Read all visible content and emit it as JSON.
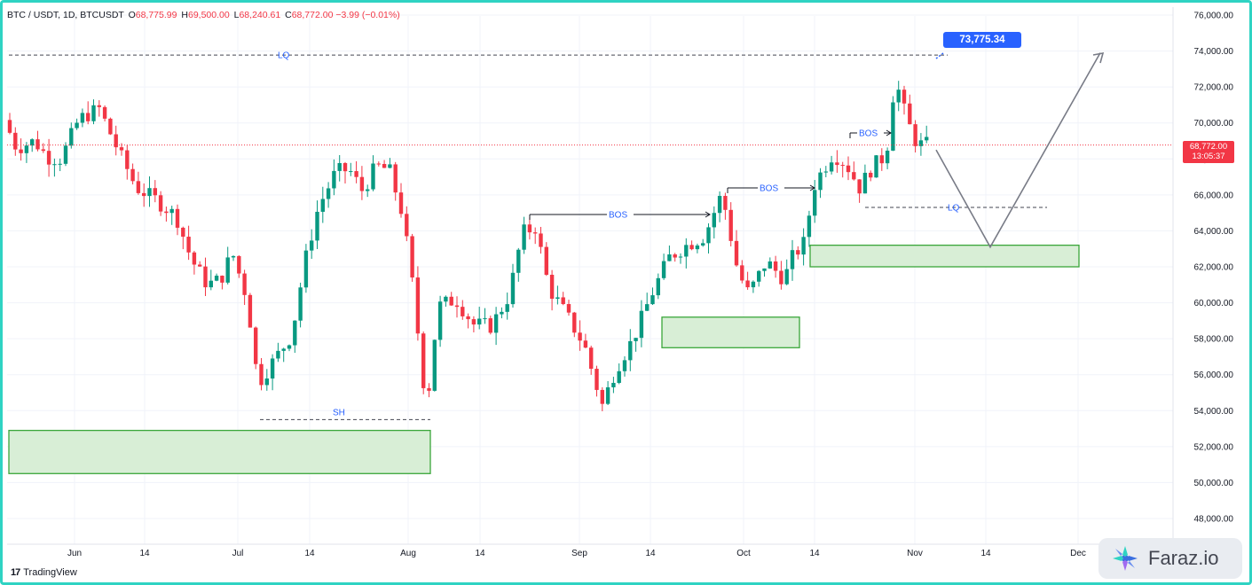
{
  "header": {
    "symbol": "BTC / USDT, 1D, BTCUSDT",
    "open_label": "O",
    "open": "68,775.99",
    "high_label": "H",
    "high": "69,500.00",
    "low_label": "L",
    "low": "68,240.61",
    "close_label": "C",
    "close": "68,772.00",
    "change": "−3.99 (−0.01%)"
  },
  "current_price": {
    "value": "68,772.00",
    "countdown": "13:05:37"
  },
  "callout": "73,775.34",
  "branding": {
    "tradingview": "TradingView",
    "faraz": "Faraz.io"
  },
  "colors": {
    "up": "#089981",
    "down": "#f23645",
    "annotation": "#2962ff",
    "zone_fill": "#d8eed6",
    "zone_border": "#3aa63a"
  },
  "chart_data": {
    "type": "candlestick",
    "y_axis": {
      "min": 48000,
      "max": 76000,
      "ticks": [
        "76,000.00",
        "74,000.00",
        "72,000.00",
        "70,000.00",
        "68,000.00",
        "66,000.00",
        "64,000.00",
        "62,000.00",
        "60,000.00",
        "58,000.00",
        "56,000.00",
        "54,000.00",
        "52,000.00",
        "50,000.00",
        "48,000.00"
      ]
    },
    "x_axis": {
      "ticks": [
        "Jun",
        "14",
        "Jul",
        "14",
        "Aug",
        "14",
        "Sep",
        "14",
        "Oct",
        "14",
        "Nov",
        "14",
        "Dec"
      ]
    },
    "annotations": {
      "lq_top": {
        "label": "LQ",
        "price": 73775
      },
      "lq_mid": {
        "label": "LQ",
        "price": 65300
      },
      "sh": {
        "label": "SH",
        "price": 53500
      },
      "bos": [
        "BOS",
        "BOS",
        "BOS"
      ]
    },
    "zones": [
      {
        "top": 52900,
        "bottom": 50500
      },
      {
        "top": 59200,
        "bottom": 57500
      },
      {
        "top": 63200,
        "bottom": 62000
      }
    ],
    "projection": [
      68500,
      63100,
      73900
    ]
  }
}
